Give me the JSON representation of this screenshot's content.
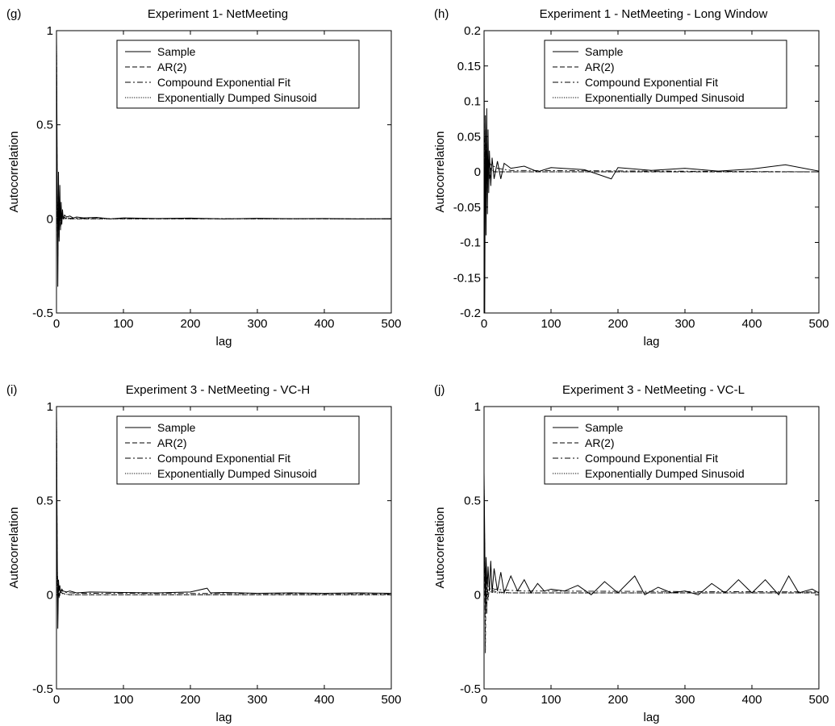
{
  "chart_data": [
    {
      "panel": "(g)",
      "type": "line",
      "title": "Experiment 1- NetMeeting",
      "xlabel": "lag",
      "ylabel": "Autocorrelation",
      "xlim": [
        0,
        500
      ],
      "ylim": [
        -0.5,
        1
      ],
      "xticks": [
        0,
        100,
        200,
        300,
        400,
        500
      ],
      "yticks": [
        -0.5,
        0,
        0.5,
        1
      ],
      "ytick_labels": [
        "-0.5",
        "0",
        "0.5",
        "1"
      ],
      "grid": false,
      "legend_placement": "top-right",
      "series": [
        {
          "name": "Sample",
          "style": "solid",
          "x": [
            0,
            1,
            2,
            3,
            4,
            5,
            6,
            7,
            8,
            9,
            10,
            12,
            15,
            20,
            25,
            30,
            40,
            60,
            80,
            100,
            150,
            200,
            250,
            300,
            350,
            400,
            450,
            500
          ],
          "y": [
            1,
            0.32,
            -0.36,
            0.25,
            -0.12,
            0.18,
            -0.06,
            0.09,
            -0.03,
            0.05,
            0.0,
            0.02,
            0.01,
            0.015,
            0.005,
            0.01,
            0.005,
            0.008,
            0.0,
            0.005,
            0.002,
            0.004,
            0.0,
            0.003,
            0.001,
            0.002,
            0.0,
            0.001
          ]
        },
        {
          "name": "AR(2)",
          "style": "dashed",
          "x": [
            0,
            1,
            2,
            3,
            4,
            5,
            6,
            8,
            10,
            15,
            20,
            500
          ],
          "y": [
            1,
            0.15,
            -0.2,
            0.17,
            -0.1,
            0.08,
            -0.05,
            0.02,
            0.0,
            0.005,
            0.0,
            0.0
          ]
        },
        {
          "name": "Compound Exponential Fit",
          "style": "dashdot",
          "x": [
            0,
            1,
            2,
            3,
            5,
            8,
            12,
            20,
            40,
            500
          ],
          "y": [
            1,
            0.1,
            0.05,
            0.03,
            0.02,
            0.012,
            0.008,
            0.004,
            0.002,
            0.0
          ]
        },
        {
          "name": "Exponentially Dumped Sinusoid",
          "style": "dotted",
          "x": [
            0,
            1,
            2,
            3,
            4,
            5,
            6,
            8,
            10,
            20,
            500
          ],
          "y": [
            1,
            0.08,
            -0.1,
            0.06,
            -0.04,
            0.03,
            -0.02,
            0.01,
            0.0,
            0.0,
            0.0
          ]
        }
      ]
    },
    {
      "panel": "(h)",
      "type": "line",
      "title": "Experiment 1 - NetMeeting - Long Window",
      "xlabel": "lag",
      "ylabel": "Autocorrelation",
      "xlim": [
        0,
        500
      ],
      "ylim": [
        -0.2,
        0.2
      ],
      "xticks": [
        0,
        100,
        200,
        300,
        400,
        500
      ],
      "yticks": [
        -0.2,
        -0.15,
        -0.1,
        -0.05,
        0,
        0.05,
        0.1,
        0.15,
        0.2
      ],
      "ytick_labels": [
        "-0.2",
        "-0.15",
        "-0.1",
        "-0.05",
        "0",
        "0.05",
        "0.1",
        "0.15",
        "0.2"
      ],
      "grid": false,
      "legend_placement": "top-right",
      "series": [
        {
          "name": "Sample",
          "style": "solid",
          "x": [
            0,
            1,
            2,
            3,
            4,
            5,
            6,
            7,
            8,
            10,
            12,
            15,
            20,
            25,
            30,
            40,
            60,
            80,
            100,
            150,
            190,
            200,
            250,
            300,
            350,
            400,
            450,
            500
          ],
          "y": [
            0.2,
            -0.2,
            0.08,
            -0.09,
            0.09,
            -0.06,
            0.06,
            -0.03,
            0.03,
            -0.02,
            0.02,
            -0.01,
            0.015,
            -0.01,
            0.012,
            0.005,
            0.008,
            0.0,
            0.006,
            0.003,
            -0.01,
            0.006,
            0.002,
            0.005,
            0.001,
            0.004,
            0.01,
            0.001
          ]
        },
        {
          "name": "AR(2)",
          "style": "dashed",
          "x": [
            0,
            1,
            2,
            3,
            4,
            5,
            6,
            8,
            10,
            15,
            20,
            500
          ],
          "y": [
            0.1,
            -0.08,
            0.06,
            -0.05,
            0.04,
            -0.03,
            0.02,
            -0.01,
            0.005,
            0.0,
            0.0,
            0.0
          ]
        },
        {
          "name": "Compound Exponential Fit",
          "style": "dashdot",
          "x": [
            0,
            2,
            5,
            10,
            20,
            40,
            500
          ],
          "y": [
            0.05,
            0.03,
            0.02,
            0.01,
            0.005,
            0.002,
            0.0
          ]
        },
        {
          "name": "Exponentially Dumped Sinusoid",
          "style": "dotted",
          "x": [
            0,
            1,
            2,
            3,
            4,
            5,
            6,
            8,
            10,
            20,
            500
          ],
          "y": [
            0.08,
            -0.07,
            0.05,
            -0.04,
            0.03,
            -0.02,
            0.015,
            -0.008,
            0.004,
            0.0,
            0.0
          ]
        }
      ]
    },
    {
      "panel": "(i)",
      "type": "line",
      "title": "Experiment 3 - NetMeeting - VC-H",
      "xlabel": "lag",
      "ylabel": "Autocorrelation",
      "xlim": [
        0,
        500
      ],
      "ylim": [
        -0.5,
        1
      ],
      "xticks": [
        0,
        100,
        200,
        300,
        400,
        500
      ],
      "yticks": [
        -0.5,
        0,
        0.5,
        1
      ],
      "ytick_labels": [
        "-0.5",
        "0",
        "0.5",
        "1"
      ],
      "grid": false,
      "legend_placement": "top-right",
      "series": [
        {
          "name": "Sample",
          "style": "solid",
          "x": [
            0,
            1,
            2,
            3,
            4,
            5,
            6,
            8,
            10,
            15,
            20,
            30,
            50,
            100,
            150,
            200,
            225,
            230,
            250,
            300,
            350,
            400,
            450,
            500
          ],
          "y": [
            1,
            0.3,
            -0.18,
            0.08,
            0.02,
            0.05,
            0.01,
            0.03,
            0.02,
            0.015,
            0.02,
            0.01,
            0.015,
            0.012,
            0.01,
            0.015,
            0.035,
            0.01,
            0.012,
            0.008,
            0.01,
            0.008,
            0.01,
            0.008
          ]
        },
        {
          "name": "AR(2)",
          "style": "dashed",
          "x": [
            0,
            1,
            2,
            3,
            4,
            5,
            8,
            12,
            20,
            500
          ],
          "y": [
            1,
            0.2,
            -0.1,
            0.06,
            -0.02,
            0.02,
            0.01,
            0.005,
            0.0,
            0.0
          ]
        },
        {
          "name": "Compound Exponential Fit",
          "style": "dashdot",
          "x": [
            0,
            1,
            2,
            4,
            8,
            15,
            30,
            500
          ],
          "y": [
            1,
            0.15,
            0.06,
            0.03,
            0.02,
            0.012,
            0.008,
            0.005
          ]
        },
        {
          "name": "Exponentially Dumped Sinusoid",
          "style": "dotted",
          "x": [
            0,
            1,
            2,
            3,
            4,
            6,
            10,
            20,
            500
          ],
          "y": [
            1,
            0.1,
            -0.05,
            0.03,
            -0.01,
            0.01,
            0.005,
            0.0,
            0.0
          ]
        }
      ]
    },
    {
      "panel": "(j)",
      "type": "line",
      "title": "Experiment 3 - NetMeeting - VC-L",
      "xlabel": "lag",
      "ylabel": "Autocorrelation",
      "xlim": [
        0,
        500
      ],
      "ylim": [
        -0.5,
        1
      ],
      "xticks": [
        0,
        100,
        200,
        300,
        400,
        500
      ],
      "yticks": [
        -0.5,
        0,
        0.5,
        1
      ],
      "ytick_labels": [
        "-0.5",
        "0",
        "0.5",
        "1"
      ],
      "grid": false,
      "legend_placement": "top-right",
      "series": [
        {
          "name": "Sample",
          "style": "solid",
          "x": [
            0,
            1,
            2,
            3,
            4,
            5,
            6,
            8,
            10,
            12,
            15,
            20,
            25,
            30,
            40,
            50,
            60,
            70,
            80,
            90,
            100,
            120,
            140,
            160,
            180,
            200,
            225,
            240,
            260,
            280,
            300,
            320,
            340,
            360,
            380,
            400,
            420,
            440,
            455,
            470,
            490,
            500
          ],
          "y": [
            0.65,
            0.3,
            -0.1,
            0.2,
            0.1,
            0.05,
            0.15,
            0.02,
            0.18,
            0.01,
            0.14,
            0.02,
            0.12,
            0.01,
            0.1,
            0.02,
            0.08,
            0.01,
            0.06,
            0.02,
            0.03,
            0.02,
            0.05,
            0.0,
            0.07,
            0.01,
            0.1,
            0.0,
            0.04,
            0.01,
            0.02,
            0.0,
            0.06,
            0.01,
            0.08,
            0.01,
            0.08,
            0.0,
            0.1,
            0.01,
            0.03,
            0.01
          ]
        },
        {
          "name": "AR(2)",
          "style": "dashed",
          "x": [
            0,
            1,
            2,
            3,
            4,
            5,
            6,
            8,
            10,
            15,
            20,
            40,
            500
          ],
          "y": [
            0.6,
            0.2,
            -0.31,
            0.15,
            -0.1,
            0.08,
            -0.03,
            0.04,
            0.02,
            0.02,
            0.015,
            0.01,
            0.01
          ]
        },
        {
          "name": "Compound Exponential Fit",
          "style": "dashdot",
          "x": [
            0,
            1,
            2,
            4,
            8,
            15,
            30,
            60,
            500
          ],
          "y": [
            0.6,
            0.2,
            0.1,
            0.06,
            0.04,
            0.03,
            0.025,
            0.02,
            0.015
          ]
        },
        {
          "name": "Exponentially Dumped Sinusoid",
          "style": "dotted",
          "x": [
            0,
            1,
            2,
            3,
            4,
            6,
            10,
            20,
            500
          ],
          "y": [
            0.6,
            0.15,
            -0.05,
            0.08,
            -0.02,
            0.03,
            0.015,
            0.01,
            0.01
          ]
        }
      ]
    }
  ]
}
